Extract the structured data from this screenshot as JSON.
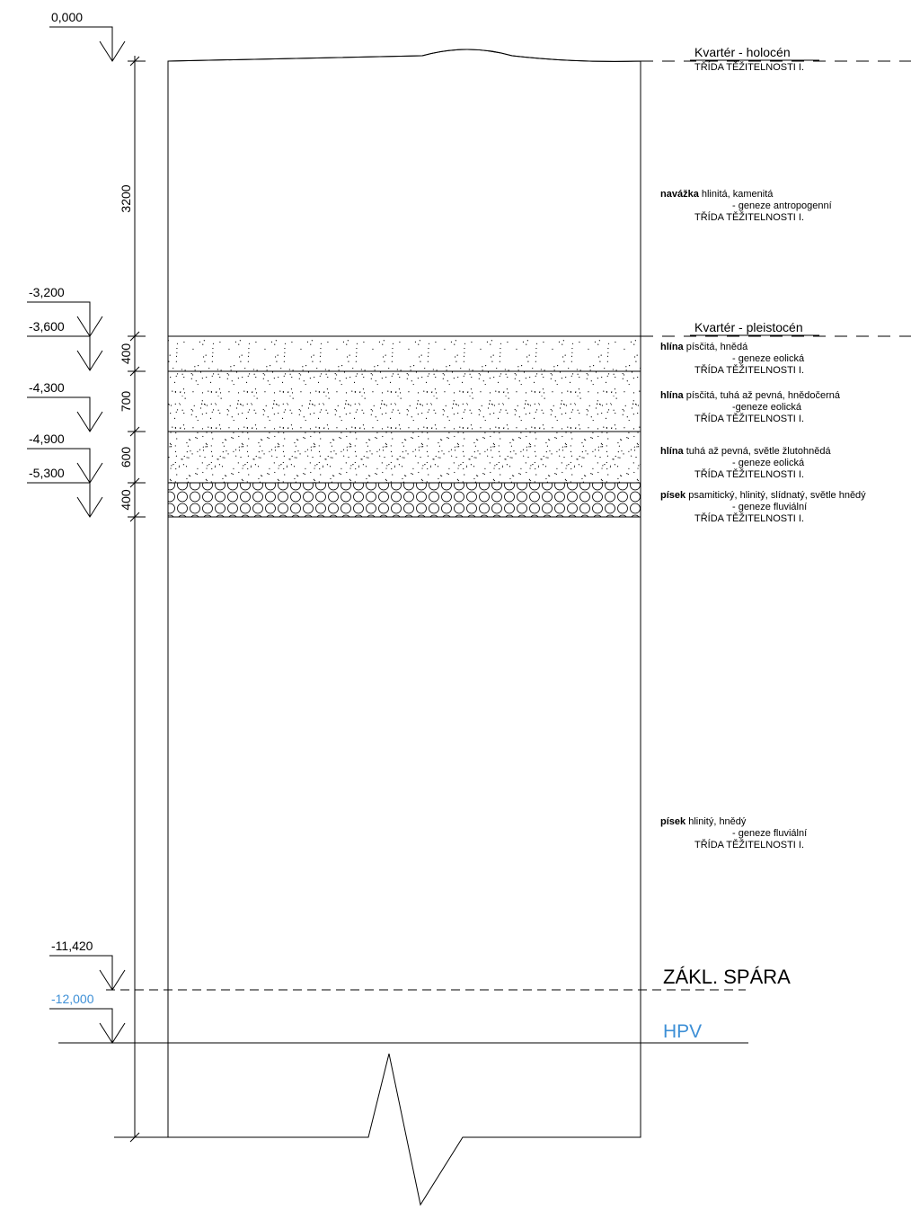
{
  "levels": [
    "0,000",
    "-3,200",
    "-3,600",
    "-4,300",
    "-4,900",
    "-5,300",
    "-11,420",
    "-12,000"
  ],
  "dimensions": [
    "3200",
    "400",
    "700",
    "600",
    "400"
  ],
  "stratigraphy": [
    "Kvartér - holocén",
    "Kvartér - pleistocén"
  ],
  "foundation": "ZÁKL. SPÁRA",
  "groundwater": "HPV",
  "layers": [
    {
      "name": "navážka",
      "description": "hlinitá, kamenitá",
      "genesis": "- geneze antropogenní",
      "class": "TŘÍDA TĚŽITELNOSTI I."
    },
    {
      "name": "hlína",
      "description": "písčitá, hnědá",
      "genesis": "- geneze eolická",
      "class": "TŘÍDA TĚŽITELNOSTI I."
    },
    {
      "name": "hlína",
      "description": "písčitá, tuhá až pevná, hnědočerná",
      "genesis": "-geneze eolická",
      "class": "TŘÍDA TĚŽITELNOSTI I."
    },
    {
      "name": "hlína",
      "description": "tuhá až pevná, světle žlutohnědá",
      "genesis": "- geneze eolická",
      "class": "TŘÍDA TĚŽITELNOSTI I."
    },
    {
      "name": "písek",
      "description": "psamitický, hlinitý, slídnatý, světle hnědý",
      "genesis": "- geneze fluviální",
      "class": "TŘÍDA TĚŽITELNOSTI I."
    },
    {
      "name": "písek",
      "description": "hlinitý, hnědý",
      "genesis": "- geneze fluviální",
      "class": "TŘÍDA TĚŽITELNOSTI I."
    }
  ]
}
